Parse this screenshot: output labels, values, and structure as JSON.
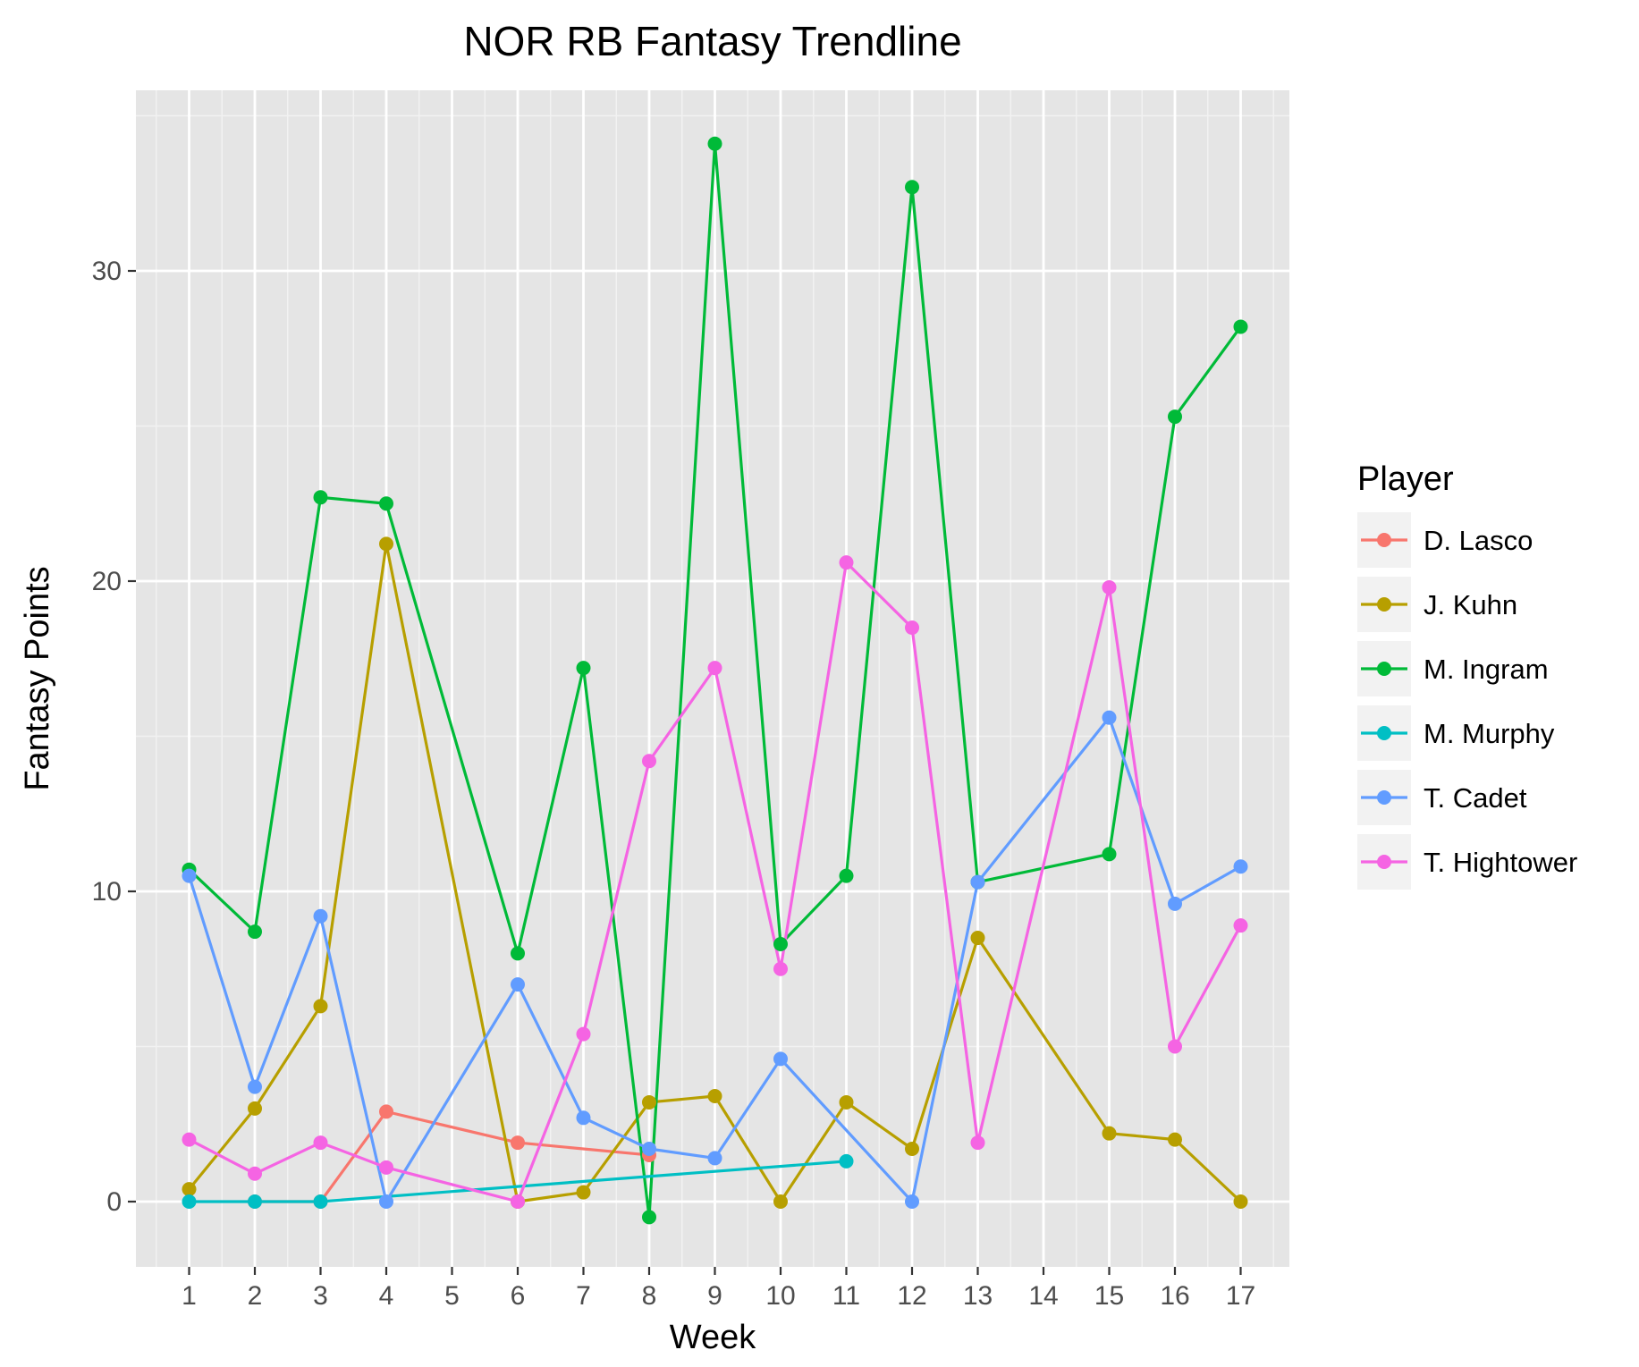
{
  "chart_data": {
    "type": "line",
    "title": "NOR RB Fantasy Trendline",
    "xlabel": "Week",
    "ylabel": "Fantasy Points",
    "categories": [
      "1",
      "2",
      "3",
      "4",
      "5",
      "6",
      "7",
      "8",
      "9",
      "10",
      "11",
      "12",
      "13",
      "14",
      "15",
      "16",
      "17"
    ],
    "y_ticks": [
      0,
      10,
      20,
      30
    ],
    "ylim": [
      -2.3,
      35.8
    ],
    "grid": true,
    "legend": {
      "title": "Player",
      "position": "right"
    },
    "series": [
      {
        "name": "D. Lasco",
        "color": "#F8766D",
        "points": [
          [
            2,
            0
          ],
          [
            3,
            0
          ],
          [
            4,
            2.9
          ],
          [
            6,
            1.9
          ],
          [
            8,
            1.5
          ]
        ]
      },
      {
        "name": "J. Kuhn",
        "color": "#B79F00",
        "points": [
          [
            1,
            0.4
          ],
          [
            2,
            3.0
          ],
          [
            3,
            6.3
          ],
          [
            4,
            21.2
          ],
          [
            6,
            0
          ],
          [
            7,
            0.3
          ],
          [
            8,
            3.2
          ],
          [
            9,
            3.4
          ],
          [
            10,
            0
          ],
          [
            11,
            3.2
          ],
          [
            12,
            1.7
          ],
          [
            13,
            8.5
          ],
          [
            15,
            2.2
          ],
          [
            16,
            2.0
          ],
          [
            17,
            0
          ]
        ]
      },
      {
        "name": "M. Ingram",
        "color": "#00BA38",
        "points": [
          [
            1,
            10.7
          ],
          [
            2,
            8.7
          ],
          [
            3,
            22.7
          ],
          [
            4,
            22.5
          ],
          [
            6,
            8.0
          ],
          [
            7,
            17.2
          ],
          [
            8,
            -0.5
          ],
          [
            9,
            34.1
          ],
          [
            10,
            8.3
          ],
          [
            11,
            10.5
          ],
          [
            12,
            32.7
          ],
          [
            13,
            10.3
          ],
          [
            15,
            11.2
          ],
          [
            16,
            25.3
          ],
          [
            17,
            28.2
          ]
        ]
      },
      {
        "name": "M. Murphy",
        "color": "#00BFC4",
        "points": [
          [
            1,
            0
          ],
          [
            2,
            0
          ],
          [
            3,
            0
          ],
          [
            11,
            1.3
          ]
        ]
      },
      {
        "name": "T. Cadet",
        "color": "#619CFF",
        "points": [
          [
            1,
            10.5
          ],
          [
            2,
            3.7
          ],
          [
            3,
            9.2
          ],
          [
            4,
            0
          ],
          [
            6,
            7.0
          ],
          [
            7,
            2.7
          ],
          [
            8,
            1.7
          ],
          [
            9,
            1.4
          ],
          [
            10,
            4.6
          ],
          [
            12,
            0
          ],
          [
            13,
            10.3
          ],
          [
            15,
            15.6
          ],
          [
            16,
            9.6
          ],
          [
            17,
            10.8
          ]
        ]
      },
      {
        "name": "T. Hightower",
        "color": "#F564E3",
        "points": [
          [
            1,
            2.0
          ],
          [
            2,
            0.9
          ],
          [
            3,
            1.9
          ],
          [
            4,
            1.1
          ],
          [
            6,
            0
          ],
          [
            7,
            5.4
          ],
          [
            8,
            14.2
          ],
          [
            9,
            17.2
          ],
          [
            10,
            7.5
          ],
          [
            11,
            20.6
          ],
          [
            12,
            18.5
          ],
          [
            13,
            1.9
          ],
          [
            15,
            19.8
          ],
          [
            16,
            5.0
          ],
          [
            17,
            8.9
          ]
        ]
      }
    ]
  }
}
